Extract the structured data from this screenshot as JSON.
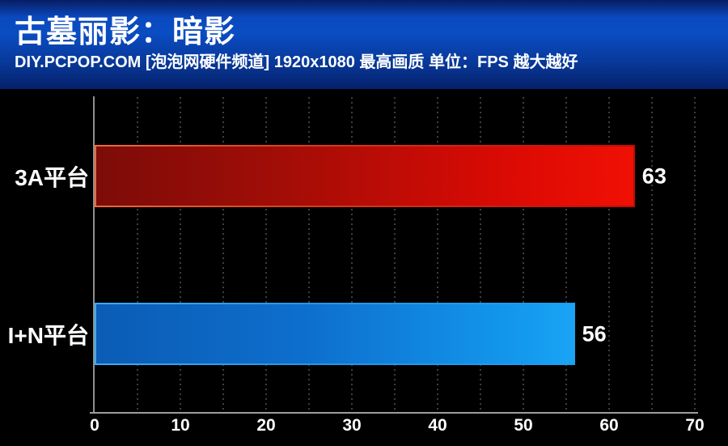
{
  "header": {
    "title": "古墓丽影：暗影",
    "subtitle": "DIY.PCPOP.COM [泡泡网硬件频道] 1920x1080 最高画质 单位：FPS  越大越好"
  },
  "chart_data": {
    "type": "bar",
    "orientation": "horizontal",
    "title": "古墓丽影：暗影",
    "subtitle": "DIY.PCPOP.COM [泡泡网硬件频道] 1920x1080 最高画质 单位：FPS 越大越好",
    "unit": "FPS",
    "higher_is_better": true,
    "categories": [
      "3A平台",
      "I+N平台"
    ],
    "values": [
      63,
      56
    ],
    "xlim": [
      0,
      70
    ],
    "x_ticks": [
      0,
      10,
      20,
      30,
      40,
      50,
      60,
      70
    ],
    "minor_grid_step": 5,
    "grid": "dotted-vertical",
    "legend": "none",
    "bar_styles": [
      {
        "name": "3A平台",
        "fill_start": "#7c0c08",
        "fill_end": "#f01004",
        "edge": "#ea6b3e",
        "class": "red"
      },
      {
        "name": "I+N平台",
        "fill_start": "#0b5cb4",
        "fill_end": "#1ba4f5",
        "edge": "#3dabf2",
        "class": "blue"
      }
    ]
  },
  "colors": {
    "background": "#000000",
    "header_top": "#081d63",
    "header_mid": "#0a4cc2",
    "header_bottom": "#05216b",
    "text": "#ffffff",
    "axis_line": "#9d9d9d",
    "gridline": "#3e3e3e"
  }
}
